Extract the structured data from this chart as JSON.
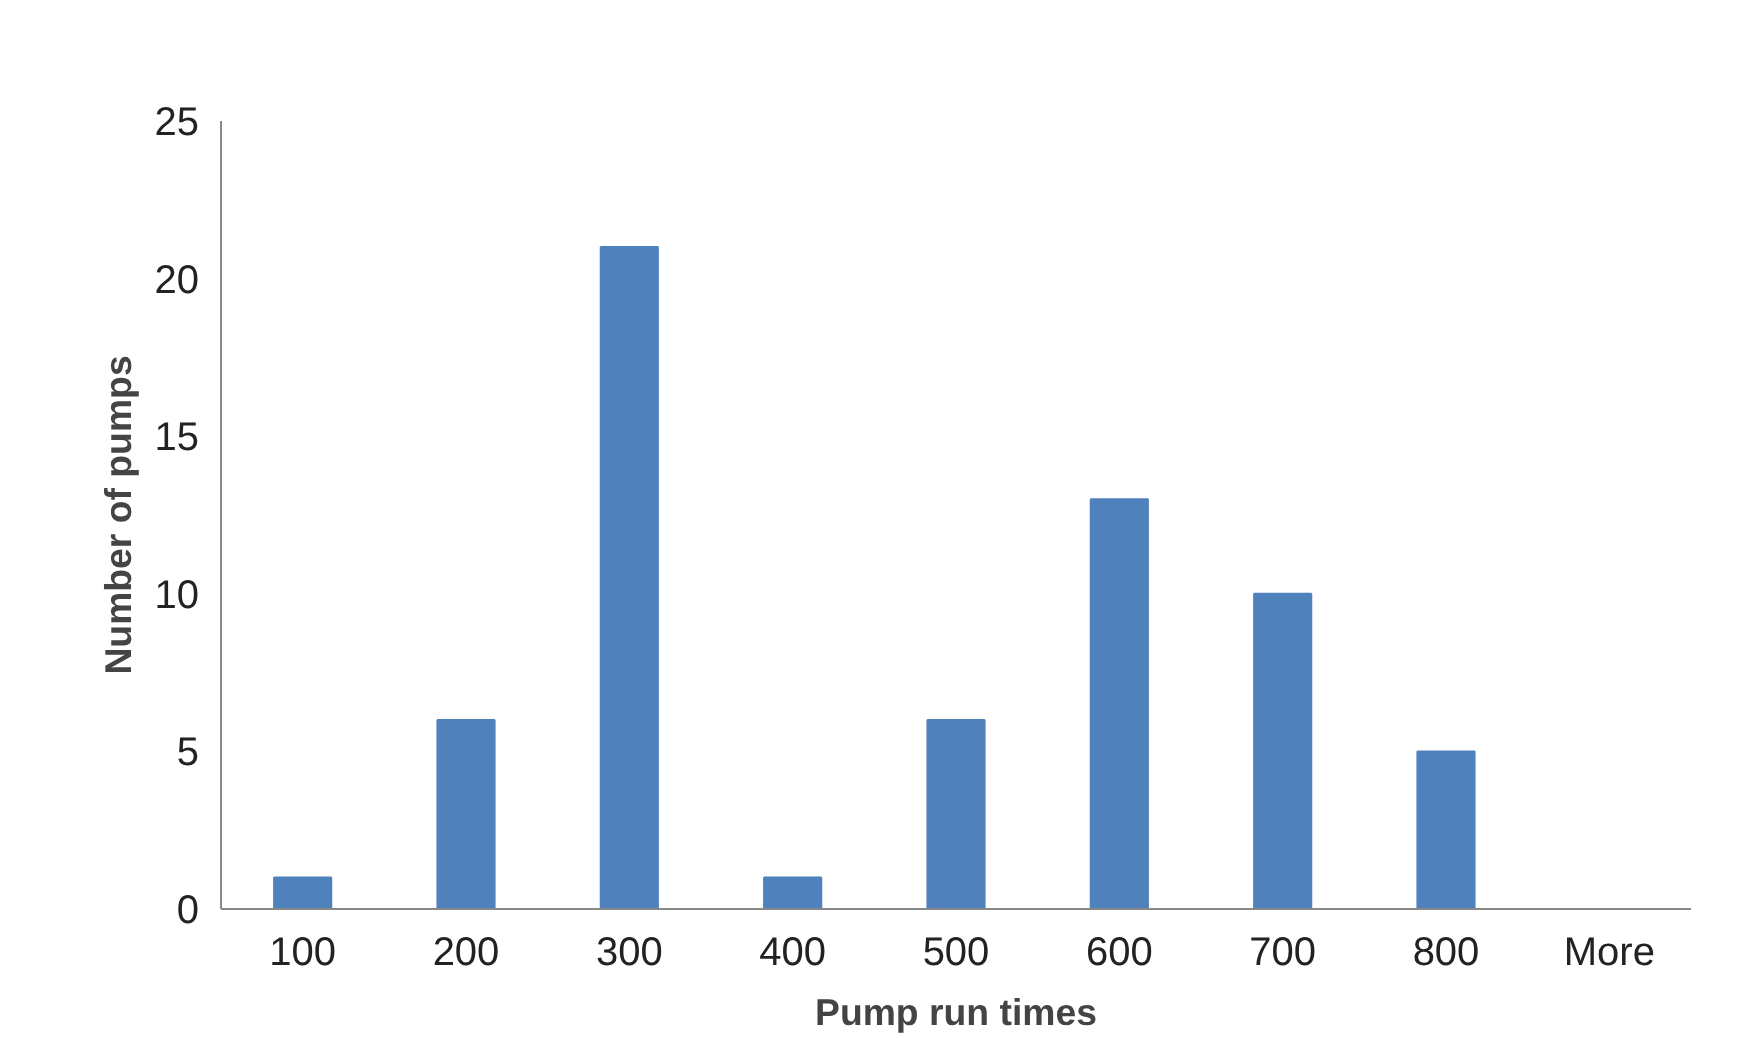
{
  "chart_data": {
    "type": "bar",
    "xlabel": "Pump run times",
    "ylabel": "Number of pumps",
    "categories": [
      "100",
      "200",
      "300",
      "400",
      "500",
      "600",
      "700",
      "800",
      "More"
    ],
    "values": [
      1,
      6,
      21,
      1,
      6,
      13,
      10,
      5,
      0
    ],
    "color": "#4f81bd",
    "ylim": [
      0,
      25
    ],
    "yticks": [
      0,
      5,
      10,
      15,
      20,
      25
    ],
    "grid": false
  }
}
